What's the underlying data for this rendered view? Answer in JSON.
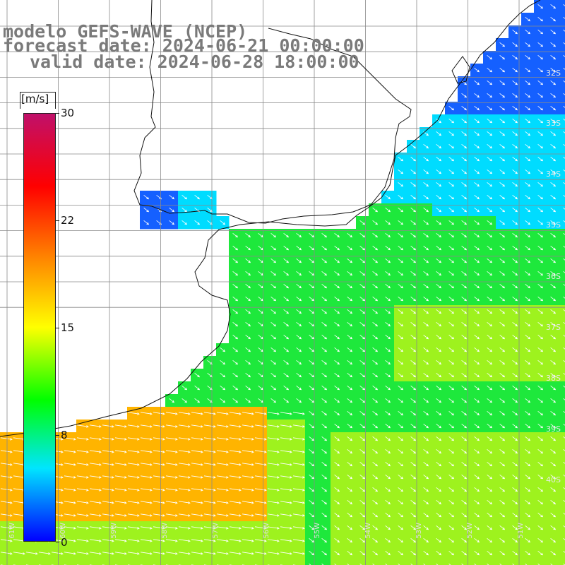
{
  "header": {
    "line1": "modelo GEFS-WAVE (NCEP)",
    "line2": "forecast date: 2024-06-21 00:00:00",
    "line3": "valid date: 2024-06-28 18:00:00"
  },
  "colorbar": {
    "unit": "[m/s]",
    "ticks": [
      "30",
      "22",
      "15",
      "8",
      "0"
    ],
    "min": 0,
    "max": 30,
    "stops": [
      "#0000ff",
      "#00e5ff",
      "#00ff00",
      "#ffff00",
      "#ff7f00",
      "#ff0000",
      "#c0106a"
    ]
  },
  "lat_labels": [
    "32S",
    "33S",
    "34S",
    "35S",
    "36S",
    "37S",
    "38S",
    "39S",
    "40S"
  ],
  "lon_labels": [
    "61W",
    "60W",
    "59W",
    "58W",
    "57W",
    "56W",
    "55W",
    "54W",
    "53W",
    "52W",
    "51W"
  ],
  "field": {
    "variable": "wind speed",
    "colors": {
      "weak": "#1560ff",
      "light": "#00dcff",
      "moderate": "#1ee83c",
      "fresh": "#9ef21e",
      "strong": "#ffb400"
    }
  }
}
